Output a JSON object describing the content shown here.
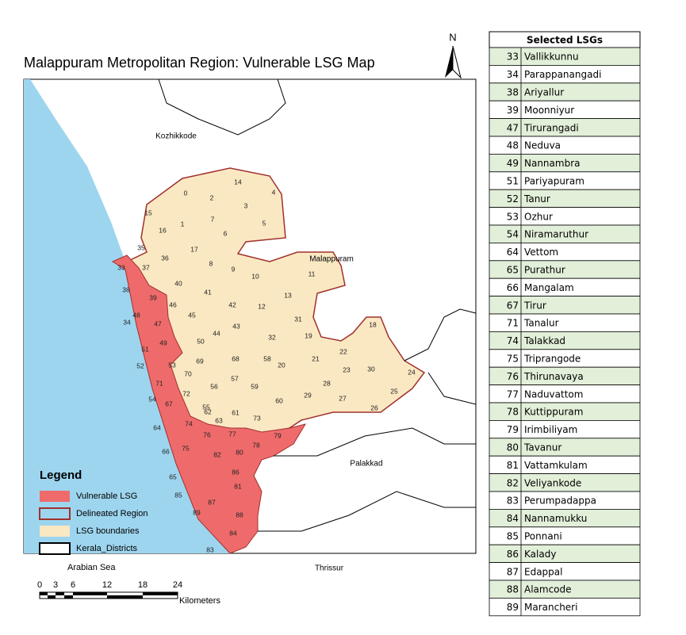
{
  "map": {
    "title": "Malappuram Metropolitan Region: Vulnerable LSG Map",
    "north": "N",
    "places": [
      "Kozhikkode",
      "Malappuram",
      "Palakkad",
      "Thrissur"
    ],
    "lsg_labels": [
      "0",
      "1",
      "2",
      "3",
      "4",
      "5",
      "6",
      "7",
      "8",
      "9",
      "10",
      "11",
      "12",
      "13",
      "14",
      "15",
      "16",
      "17",
      "18",
      "19",
      "20",
      "21",
      "22",
      "23",
      "24",
      "25",
      "26",
      "27",
      "28",
      "29",
      "30",
      "31",
      "32",
      "33",
      "34",
      "35",
      "36",
      "37",
      "38",
      "39",
      "40",
      "41",
      "42",
      "43",
      "44",
      "45",
      "46",
      "47",
      "48",
      "49",
      "50",
      "51",
      "52",
      "53",
      "54",
      "55",
      "56",
      "57",
      "58",
      "59",
      "60",
      "61",
      "62",
      "63",
      "64",
      "65",
      "66",
      "67",
      "68",
      "69",
      "70",
      "71",
      "72",
      "73",
      "74",
      "75",
      "76",
      "77",
      "78",
      "79",
      "80",
      "81",
      "82",
      "83",
      "84",
      "85",
      "86",
      "87",
      "88",
      "89"
    ],
    "legend": {
      "title": "Legend",
      "items": [
        "Vulnerable LSG",
        "Delineated Region",
        "LSG boundaries",
        "Kerala_Districts"
      ],
      "note": "Arabian Sea"
    },
    "scale": {
      "ticks": [
        "0",
        "3",
        "6",
        "12",
        "18",
        "24"
      ],
      "unit": "Kilometers"
    }
  },
  "table": {
    "header": "Selected LSGs",
    "rows": [
      [
        "33",
        "Vallikkunnu"
      ],
      [
        "34",
        "Parappanangadi"
      ],
      [
        "38",
        "Ariyallur"
      ],
      [
        "39",
        "Moonniyur"
      ],
      [
        "47",
        "Tirurangadi"
      ],
      [
        "48",
        "Neduva"
      ],
      [
        "49",
        "Nannambra"
      ],
      [
        "51",
        "Pariyapuram"
      ],
      [
        "52",
        "Tanur"
      ],
      [
        "53",
        "Ozhur"
      ],
      [
        "54",
        "Niramaruthur"
      ],
      [
        "64",
        "Vettom"
      ],
      [
        "65",
        "Purathur"
      ],
      [
        "66",
        "Mangalam"
      ],
      [
        "67",
        "Tirur"
      ],
      [
        "71",
        "Tanalur"
      ],
      [
        "74",
        "Talakkad"
      ],
      [
        "75",
        "Triprangode"
      ],
      [
        "76",
        "Thirunavaya"
      ],
      [
        "77",
        "Naduvattom"
      ],
      [
        "78",
        "Kuttippuram"
      ],
      [
        "79",
        "Irimbiliyam"
      ],
      [
        "80",
        "Tavanur"
      ],
      [
        "81",
        "Vattamkulam"
      ],
      [
        "82",
        "Veliyankode"
      ],
      [
        "83",
        "Perumpadappa"
      ],
      [
        "84",
        "Nannamukku"
      ],
      [
        "85",
        "Ponnani"
      ],
      [
        "86",
        "Kalady"
      ],
      [
        "87",
        "Edappal"
      ],
      [
        "88",
        "Alamcode"
      ],
      [
        "89",
        "Marancheri"
      ]
    ]
  }
}
